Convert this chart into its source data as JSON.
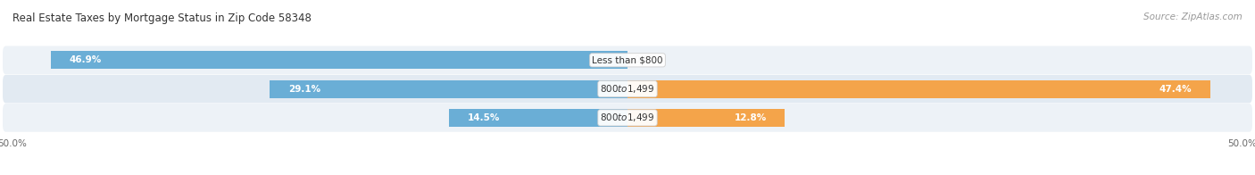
{
  "title": "Real Estate Taxes by Mortgage Status in Zip Code 58348",
  "source": "Source: ZipAtlas.com",
  "rows": [
    {
      "label": "Less than $800",
      "without_mortgage": 46.9,
      "with_mortgage": 0.0
    },
    {
      "label": "$800 to $1,499",
      "without_mortgage": 29.1,
      "with_mortgage": 47.4
    },
    {
      "label": "$800 to $1,499",
      "without_mortgage": 14.5,
      "with_mortgage": 12.8
    }
  ],
  "axis_limit": 50.0,
  "color_without": "#6aaed6",
  "color_with": "#f4a44a",
  "bar_height": 0.62,
  "row_bg_even": "#edf2f7",
  "row_bg_odd": "#e2eaf2",
  "title_fontsize": 8.5,
  "source_fontsize": 7.5,
  "value_fontsize": 7.5,
  "label_fontsize": 7.5,
  "tick_fontsize": 7.5,
  "legend_fontsize": 8.0
}
